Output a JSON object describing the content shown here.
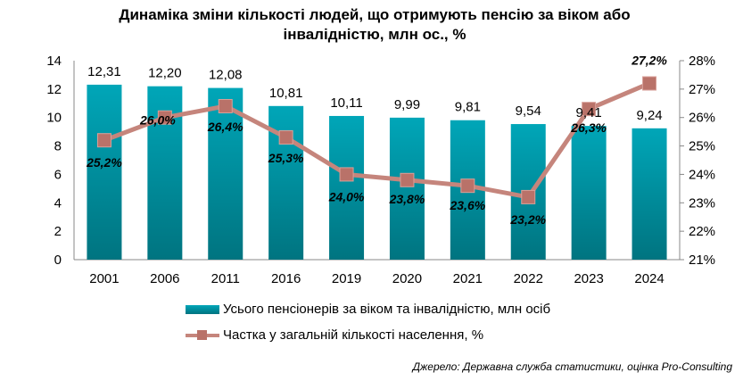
{
  "title": "Динаміка зміни кількості людей, що отримують пенсію за віком або інвалідністю, млн ос., %",
  "source": "Джерело: Державна служба статистики, оцінка Pro-Consulting",
  "chart_data": {
    "type": "bar+line",
    "title": "Динаміка зміни кількості людей, що отримують пенсію за віком або інвалідністю, млн ос., %",
    "categories": [
      "2001",
      "2006",
      "2011",
      "2016",
      "2019",
      "2020",
      "2021",
      "2022",
      "2023",
      "2024"
    ],
    "series": [
      {
        "name": "Усього пенсіонерів за віком та інвалідністю, млн осіб",
        "type": "bar",
        "axis": "left",
        "values": [
          12.31,
          12.2,
          12.08,
          10.81,
          10.11,
          9.99,
          9.81,
          9.54,
          9.41,
          9.24
        ],
        "labels": [
          "12,31",
          "12,20",
          "12,08",
          "10,81",
          "10,11",
          "9,99",
          "9,81",
          "9,54",
          "9,41",
          "9,24"
        ]
      },
      {
        "name": "Частка у загальній кількості населення, %",
        "type": "line",
        "axis": "right",
        "values": [
          25.2,
          26.0,
          26.4,
          25.3,
          24.0,
          23.8,
          23.6,
          23.2,
          26.3,
          27.2
        ],
        "labels": [
          "25,2%",
          "26,0%",
          "26,4%",
          "25,3%",
          "24,0%",
          "23,8%",
          "23,6%",
          "23,2%",
          "26,3%",
          "27,2%"
        ]
      }
    ],
    "left_axis": {
      "min": 0,
      "max": 14,
      "step": 2,
      "ticks": [
        "0",
        "2",
        "4",
        "6",
        "8",
        "10",
        "12",
        "14"
      ]
    },
    "right_axis": {
      "min": 21,
      "max": 28,
      "step": 1,
      "ticks": [
        "21%",
        "22%",
        "23%",
        "24%",
        "25%",
        "26%",
        "27%",
        "28%"
      ]
    },
    "legend_position": "bottom",
    "grid": false,
    "colors": {
      "bar_top": "#00a6b8",
      "bar_bottom": "#007480",
      "line": "#c5857c",
      "marker": "#b97269",
      "axis": "#888888"
    }
  }
}
